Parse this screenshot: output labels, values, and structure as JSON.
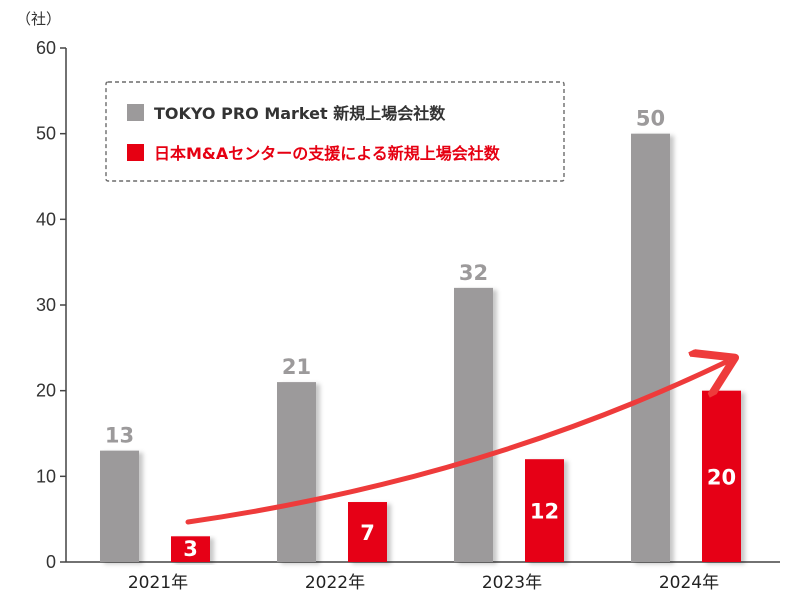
{
  "chart_data": {
    "type": "bar",
    "unit_label": "（社）",
    "categories": [
      "2021年",
      "2022年",
      "2023年",
      "2024年"
    ],
    "series": [
      {
        "name": "TOKYO PRO Market 新規上場会社数",
        "color": "#9c9a9b",
        "values": [
          13,
          21,
          32,
          50
        ]
      },
      {
        "name": "日本M&Aセンターの支援による新規上場会社数",
        "color": "#e60012",
        "values": [
          3,
          7,
          12,
          20
        ]
      }
    ],
    "ylim": [
      0,
      60
    ],
    "yticks": [
      0,
      10,
      20,
      30,
      40,
      50,
      60
    ],
    "legend_position": "top-left",
    "annotation": "upward trend arrow",
    "arrow_color": "#ee3b3b",
    "grid": false
  }
}
